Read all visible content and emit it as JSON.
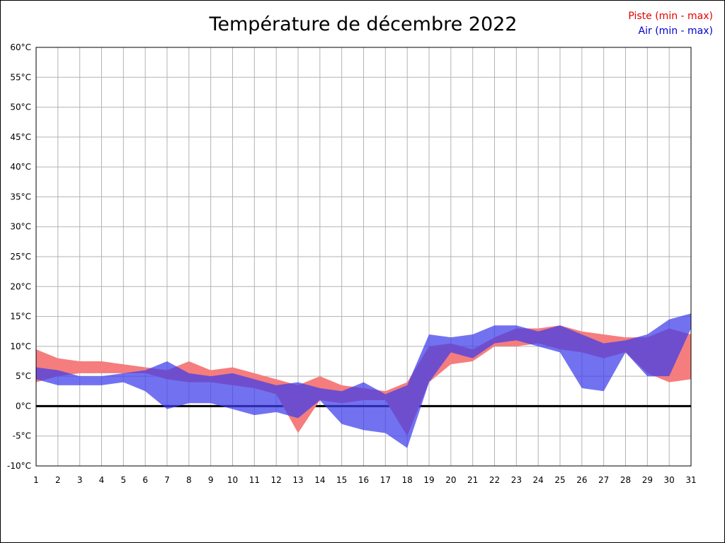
{
  "title": "Température de décembre 2022",
  "legend": {
    "piste_label": "Piste (min - max)",
    "air_label": "Air (min - max)",
    "piste_text_color": "#e00000",
    "air_text_color": "#0000cc"
  },
  "chart_data": {
    "type": "area",
    "title": "Température de décembre 2022",
    "xlabel": "",
    "ylabel": "",
    "x": [
      1,
      2,
      3,
      4,
      5,
      6,
      7,
      8,
      9,
      10,
      11,
      12,
      13,
      14,
      15,
      16,
      17,
      18,
      19,
      20,
      21,
      22,
      23,
      24,
      25,
      26,
      27,
      28,
      29,
      30,
      31
    ],
    "x_tick_labels": [
      "1",
      "2",
      "3",
      "4",
      "5",
      "6",
      "7",
      "8",
      "9",
      "10",
      "11",
      "12",
      "13",
      "14",
      "15",
      "16",
      "17",
      "18",
      "19",
      "20",
      "21",
      "22",
      "23",
      "24",
      "25",
      "26",
      "27",
      "28",
      "29",
      "30",
      "31"
    ],
    "series": [
      {
        "name": "Piste min",
        "values": [
          4,
          5,
          5.5,
          5.5,
          5.5,
          5.5,
          4.5,
          4,
          4,
          3.5,
          3,
          2,
          -4.5,
          1,
          0.5,
          1,
          1,
          -5,
          4,
          7,
          7.5,
          10,
          10,
          10.5,
          9.5,
          9,
          8,
          9,
          5.5,
          4,
          4.5
        ]
      },
      {
        "name": "Piste max",
        "values": [
          9.5,
          8,
          7.5,
          7.5,
          7,
          6.5,
          6,
          7.5,
          6,
          6.5,
          5.5,
          4.5,
          3.5,
          5,
          3.5,
          3,
          2.5,
          4,
          10,
          10.5,
          9.5,
          11.5,
          13,
          13,
          13.5,
          12.5,
          12,
          11.5,
          11.5,
          13,
          12
        ]
      },
      {
        "name": "Air min",
        "values": [
          4.5,
          3.5,
          3.5,
          3.5,
          4,
          2.5,
          -0.5,
          0.5,
          0.5,
          -0.5,
          -1.5,
          -1,
          -2,
          1,
          -3,
          -4,
          -4.5,
          -7,
          4,
          9,
          8,
          10.5,
          11,
          10,
          9,
          3,
          2.5,
          9,
          5,
          5,
          13
        ]
      },
      {
        "name": "Air max",
        "values": [
          6.5,
          6,
          5,
          5,
          5.5,
          6,
          7.5,
          5.5,
          5,
          5.5,
          4.5,
          3.5,
          4,
          3,
          2.5,
          4,
          2,
          3.5,
          12,
          11.5,
          12,
          13.5,
          13.5,
          12.5,
          13.5,
          12,
          10.5,
          11,
          12,
          14.5,
          15.5
        ]
      }
    ],
    "ylim": [
      -10,
      60
    ],
    "y_tick_step": 5,
    "y_tick_labels": [
      "60°C",
      "55°C",
      "50°C",
      "45°C",
      "40°C",
      "35°C",
      "30°C",
      "25°C",
      "20°C",
      "15°C",
      "10°C",
      "5°C",
      "0°C",
      "-5°C",
      "-10°C"
    ],
    "grid": true,
    "legend_position": "top-right",
    "colors": {
      "piste_fill": "#f57d7d",
      "air_fill": "rgba(60,60,235,0.72)",
      "grid_line": "#b3b3b3",
      "plot_border": "#000000",
      "zero_line": "#000000"
    }
  }
}
